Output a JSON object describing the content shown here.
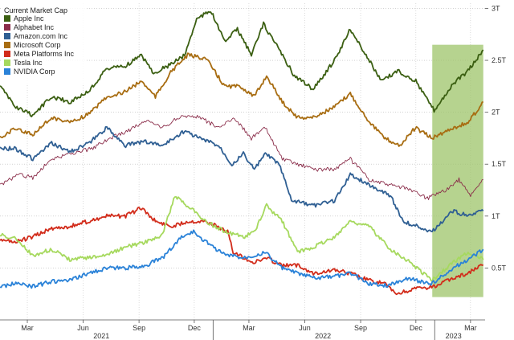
{
  "chart_data": {
    "type": "line",
    "legend_title": "Current Market Cap",
    "legend_position": "top-left",
    "grid": true,
    "y_axis_side": "right",
    "ylim": [
      0,
      3.05
    ],
    "y_ticks": [
      {
        "value": 0.5,
        "label": "0.5T"
      },
      {
        "value": 1.0,
        "label": "1T"
      },
      {
        "value": 1.5,
        "label": "1.5T"
      },
      {
        "value": 2.0,
        "label": "2T"
      },
      {
        "value": 2.5,
        "label": "2.5T"
      },
      {
        "value": 3.0,
        "label": "3T"
      }
    ],
    "x_range": [
      "2021-01-15",
      "2023-03-25"
    ],
    "x_month_ticks": [
      {
        "date": "2021-03-01",
        "label": "Mar"
      },
      {
        "date": "2021-06-01",
        "label": "Jun"
      },
      {
        "date": "2021-09-01",
        "label": "Sep"
      },
      {
        "date": "2021-12-01",
        "label": "Dec"
      },
      {
        "date": "2022-03-01",
        "label": "Mar"
      },
      {
        "date": "2022-06-01",
        "label": "Jun"
      },
      {
        "date": "2022-09-01",
        "label": "Sep"
      },
      {
        "date": "2022-12-01",
        "label": "Dec"
      },
      {
        "date": "2023-03-01",
        "label": "Mar"
      }
    ],
    "x_year_ticks": [
      {
        "date": "2021-07-01",
        "label": "2021"
      },
      {
        "date": "2022-07-01",
        "label": "2022"
      },
      {
        "date": "2023-02-01",
        "label": "2023"
      }
    ],
    "year_dividers": [
      "2022-01-01",
      "2023-01-01"
    ],
    "highlight": {
      "start": "2022-12-28",
      "end": "2023-03-22",
      "color": "#9dc46a"
    },
    "series": [
      {
        "name": "Apple Inc",
        "color": "#3b5f12",
        "width": 1.8,
        "points": [
          [
            "2021-01-15",
            2.25
          ],
          [
            "2021-02-10",
            2.05
          ],
          [
            "2021-03-10",
            1.97
          ],
          [
            "2021-04-10",
            2.15
          ],
          [
            "2021-05-10",
            2.1
          ],
          [
            "2021-06-10",
            2.2
          ],
          [
            "2021-07-10",
            2.42
          ],
          [
            "2021-08-10",
            2.45
          ],
          [
            "2021-09-05",
            2.55
          ],
          [
            "2021-09-25",
            2.38
          ],
          [
            "2021-10-20",
            2.45
          ],
          [
            "2021-11-15",
            2.55
          ],
          [
            "2021-12-05",
            2.9
          ],
          [
            "2021-12-28",
            2.98
          ],
          [
            "2022-01-20",
            2.68
          ],
          [
            "2022-02-10",
            2.8
          ],
          [
            "2022-03-05",
            2.55
          ],
          [
            "2022-03-25",
            2.85
          ],
          [
            "2022-04-20",
            2.6
          ],
          [
            "2022-05-15",
            2.35
          ],
          [
            "2022-06-15",
            2.22
          ],
          [
            "2022-07-20",
            2.5
          ],
          [
            "2022-08-15",
            2.8
          ],
          [
            "2022-09-10",
            2.55
          ],
          [
            "2022-10-05",
            2.3
          ],
          [
            "2022-11-01",
            2.4
          ],
          [
            "2022-12-01",
            2.3
          ],
          [
            "2022-12-31",
            2.02
          ],
          [
            "2023-01-31",
            2.27
          ],
          [
            "2023-02-25",
            2.4
          ],
          [
            "2023-03-22",
            2.6
          ]
        ]
      },
      {
        "name": "Alphabet Inc",
        "color": "#8a2c49",
        "width": 0.9,
        "points": [
          [
            "2021-01-15",
            1.3
          ],
          [
            "2021-02-15",
            1.4
          ],
          [
            "2021-03-10",
            1.37
          ],
          [
            "2021-04-10",
            1.55
          ],
          [
            "2021-05-10",
            1.6
          ],
          [
            "2021-06-15",
            1.65
          ],
          [
            "2021-07-15",
            1.75
          ],
          [
            "2021-08-15",
            1.82
          ],
          [
            "2021-09-10",
            1.92
          ],
          [
            "2021-10-10",
            1.85
          ],
          [
            "2021-11-10",
            1.97
          ],
          [
            "2021-12-10",
            1.95
          ],
          [
            "2022-01-10",
            1.85
          ],
          [
            "2022-02-05",
            1.95
          ],
          [
            "2022-03-05",
            1.75
          ],
          [
            "2022-03-28",
            1.85
          ],
          [
            "2022-04-25",
            1.55
          ],
          [
            "2022-05-20",
            1.5
          ],
          [
            "2022-06-20",
            1.45
          ],
          [
            "2022-07-20",
            1.45
          ],
          [
            "2022-08-15",
            1.55
          ],
          [
            "2022-09-15",
            1.35
          ],
          [
            "2022-10-20",
            1.3
          ],
          [
            "2022-11-15",
            1.27
          ],
          [
            "2022-12-20",
            1.17
          ],
          [
            "2023-01-20",
            1.25
          ],
          [
            "2023-02-10",
            1.35
          ],
          [
            "2023-03-01",
            1.2
          ],
          [
            "2023-03-22",
            1.35
          ]
        ]
      },
      {
        "name": "Amazon.com Inc",
        "color": "#2f5f93",
        "width": 1.8,
        "points": [
          [
            "2021-01-15",
            1.65
          ],
          [
            "2021-02-10",
            1.65
          ],
          [
            "2021-03-10",
            1.55
          ],
          [
            "2021-04-10",
            1.7
          ],
          [
            "2021-05-10",
            1.62
          ],
          [
            "2021-06-10",
            1.7
          ],
          [
            "2021-07-10",
            1.85
          ],
          [
            "2021-08-10",
            1.68
          ],
          [
            "2021-09-10",
            1.72
          ],
          [
            "2021-10-10",
            1.68
          ],
          [
            "2021-11-15",
            1.82
          ],
          [
            "2021-12-10",
            1.75
          ],
          [
            "2022-01-10",
            1.68
          ],
          [
            "2022-02-01",
            1.5
          ],
          [
            "2022-02-20",
            1.6
          ],
          [
            "2022-03-10",
            1.45
          ],
          [
            "2022-03-28",
            1.6
          ],
          [
            "2022-04-20",
            1.5
          ],
          [
            "2022-05-10",
            1.15
          ],
          [
            "2022-06-15",
            1.1
          ],
          [
            "2022-07-20",
            1.15
          ],
          [
            "2022-08-15",
            1.4
          ],
          [
            "2022-09-15",
            1.3
          ],
          [
            "2022-10-20",
            1.2
          ],
          [
            "2022-11-10",
            0.95
          ],
          [
            "2022-12-28",
            0.85
          ],
          [
            "2023-01-31",
            1.05
          ],
          [
            "2023-02-25",
            1.0
          ],
          [
            "2023-03-22",
            1.05
          ]
        ]
      },
      {
        "name": "Microsoft Corp",
        "color": "#a86d12",
        "width": 1.8,
        "points": [
          [
            "2021-01-15",
            1.75
          ],
          [
            "2021-02-10",
            1.85
          ],
          [
            "2021-03-10",
            1.78
          ],
          [
            "2021-04-10",
            1.95
          ],
          [
            "2021-05-10",
            1.9
          ],
          [
            "2021-06-10",
            1.98
          ],
          [
            "2021-07-10",
            2.15
          ],
          [
            "2021-08-10",
            2.2
          ],
          [
            "2021-09-05",
            2.3
          ],
          [
            "2021-09-28",
            2.15
          ],
          [
            "2021-10-25",
            2.4
          ],
          [
            "2021-11-20",
            2.55
          ],
          [
            "2021-12-20",
            2.52
          ],
          [
            "2022-01-20",
            2.25
          ],
          [
            "2022-02-15",
            2.25
          ],
          [
            "2022-03-10",
            2.15
          ],
          [
            "2022-03-30",
            2.35
          ],
          [
            "2022-04-25",
            2.1
          ],
          [
            "2022-05-20",
            1.95
          ],
          [
            "2022-06-15",
            1.95
          ],
          [
            "2022-07-20",
            2.05
          ],
          [
            "2022-08-15",
            2.18
          ],
          [
            "2022-09-10",
            1.95
          ],
          [
            "2022-10-10",
            1.75
          ],
          [
            "2022-11-05",
            1.68
          ],
          [
            "2022-11-30",
            1.85
          ],
          [
            "2022-12-28",
            1.75
          ],
          [
            "2023-01-31",
            1.85
          ],
          [
            "2023-02-25",
            1.9
          ],
          [
            "2023-03-22",
            2.1
          ]
        ]
      },
      {
        "name": "Meta Platforms Inc",
        "color": "#d22c1b",
        "width": 1.8,
        "points": [
          [
            "2021-01-15",
            0.78
          ],
          [
            "2021-02-10",
            0.75
          ],
          [
            "2021-03-10",
            0.8
          ],
          [
            "2021-04-10",
            0.88
          ],
          [
            "2021-05-10",
            0.9
          ],
          [
            "2021-06-10",
            0.95
          ],
          [
            "2021-07-10",
            1.0
          ],
          [
            "2021-08-10",
            1.0
          ],
          [
            "2021-09-05",
            1.08
          ],
          [
            "2021-09-28",
            0.95
          ],
          [
            "2021-10-25",
            0.9
          ],
          [
            "2021-11-20",
            0.95
          ],
          [
            "2021-12-20",
            0.95
          ],
          [
            "2022-01-25",
            0.85
          ],
          [
            "2022-02-03",
            0.65
          ],
          [
            "2022-03-10",
            0.55
          ],
          [
            "2022-03-30",
            0.6
          ],
          [
            "2022-04-25",
            0.52
          ],
          [
            "2022-05-20",
            0.53
          ],
          [
            "2022-06-15",
            0.45
          ],
          [
            "2022-07-20",
            0.48
          ],
          [
            "2022-08-15",
            0.45
          ],
          [
            "2022-09-15",
            0.38
          ],
          [
            "2022-10-10",
            0.35
          ],
          [
            "2022-10-30",
            0.25
          ],
          [
            "2022-12-01",
            0.3
          ],
          [
            "2022-12-31",
            0.32
          ],
          [
            "2023-01-31",
            0.4
          ],
          [
            "2023-02-25",
            0.45
          ],
          [
            "2023-03-22",
            0.53
          ]
        ]
      },
      {
        "name": "Tesla Inc",
        "color": "#a6d95e",
        "width": 1.8,
        "points": [
          [
            "2021-01-15",
            0.82
          ],
          [
            "2021-02-10",
            0.78
          ],
          [
            "2021-03-10",
            0.62
          ],
          [
            "2021-04-10",
            0.68
          ],
          [
            "2021-05-10",
            0.58
          ],
          [
            "2021-06-10",
            0.6
          ],
          [
            "2021-07-10",
            0.63
          ],
          [
            "2021-08-10",
            0.7
          ],
          [
            "2021-09-10",
            0.75
          ],
          [
            "2021-10-10",
            0.82
          ],
          [
            "2021-10-30",
            1.2
          ],
          [
            "2021-11-20",
            1.1
          ],
          [
            "2021-12-20",
            0.95
          ],
          [
            "2022-01-20",
            0.85
          ],
          [
            "2022-02-20",
            0.8
          ],
          [
            "2022-03-10",
            0.85
          ],
          [
            "2022-03-30",
            1.1
          ],
          [
            "2022-04-25",
            0.95
          ],
          [
            "2022-05-20",
            0.65
          ],
          [
            "2022-06-15",
            0.7
          ],
          [
            "2022-07-20",
            0.8
          ],
          [
            "2022-08-15",
            0.95
          ],
          [
            "2022-09-15",
            0.9
          ],
          [
            "2022-10-20",
            0.68
          ],
          [
            "2022-11-15",
            0.58
          ],
          [
            "2022-12-28",
            0.38
          ],
          [
            "2023-01-31",
            0.55
          ],
          [
            "2023-02-25",
            0.65
          ],
          [
            "2023-03-22",
            0.58
          ]
        ]
      },
      {
        "name": "NVIDIA Corp",
        "color": "#2a82d8",
        "width": 1.8,
        "points": [
          [
            "2021-01-15",
            0.32
          ],
          [
            "2021-02-10",
            0.35
          ],
          [
            "2021-03-10",
            0.32
          ],
          [
            "2021-04-10",
            0.37
          ],
          [
            "2021-05-10",
            0.38
          ],
          [
            "2021-06-10",
            0.45
          ],
          [
            "2021-07-10",
            0.5
          ],
          [
            "2021-08-10",
            0.5
          ],
          [
            "2021-09-10",
            0.52
          ],
          [
            "2021-10-10",
            0.6
          ],
          [
            "2021-11-10",
            0.8
          ],
          [
            "2021-11-30",
            0.85
          ],
          [
            "2021-12-20",
            0.75
          ],
          [
            "2022-01-20",
            0.63
          ],
          [
            "2022-02-20",
            0.6
          ],
          [
            "2022-03-28",
            0.65
          ],
          [
            "2022-04-25",
            0.5
          ],
          [
            "2022-05-20",
            0.45
          ],
          [
            "2022-06-20",
            0.4
          ],
          [
            "2022-07-20",
            0.42
          ],
          [
            "2022-08-15",
            0.45
          ],
          [
            "2022-09-15",
            0.35
          ],
          [
            "2022-10-15",
            0.33
          ],
          [
            "2022-11-15",
            0.4
          ],
          [
            "2022-12-28",
            0.35
          ],
          [
            "2023-01-31",
            0.5
          ],
          [
            "2023-02-25",
            0.58
          ],
          [
            "2023-03-22",
            0.68
          ]
        ]
      }
    ]
  }
}
